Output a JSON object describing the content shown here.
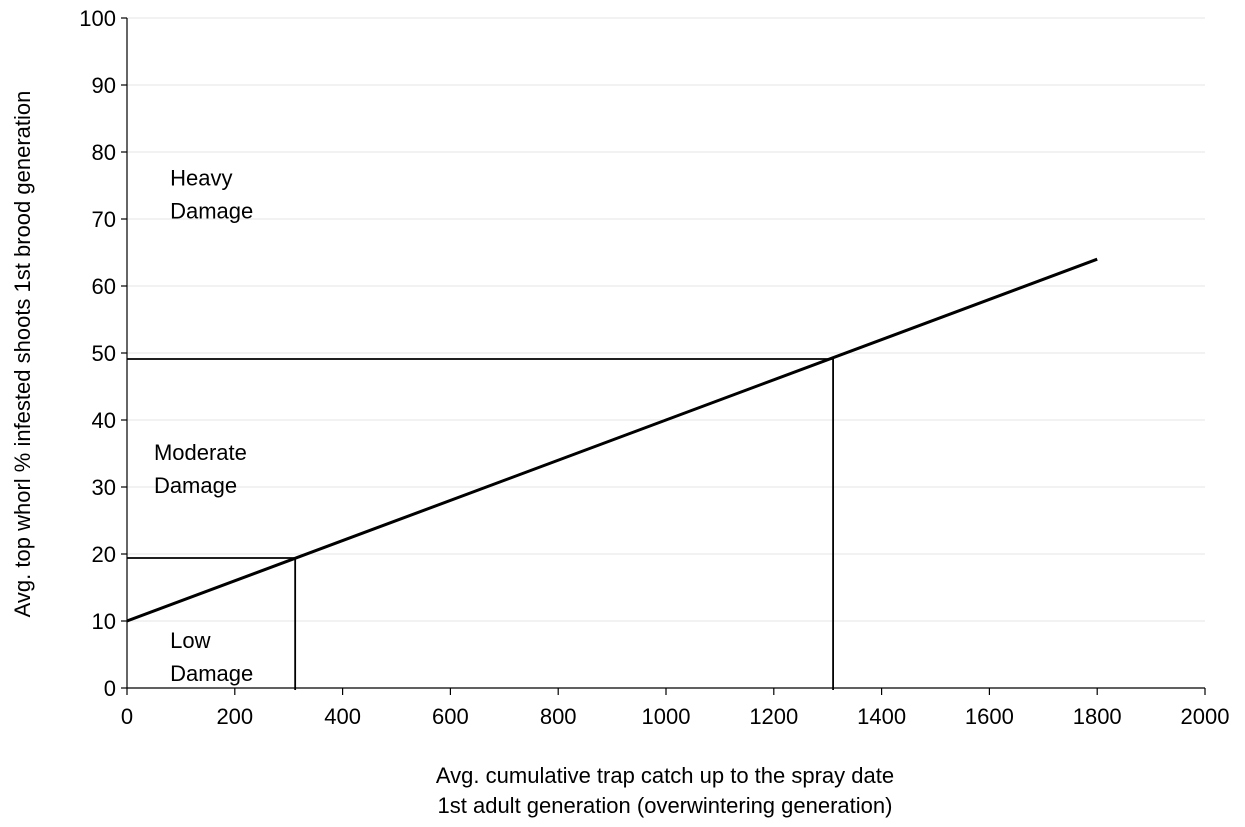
{
  "chart_data": {
    "type": "line",
    "title": "",
    "xlabel_lines": [
      "Avg. cumulative trap catch up to the spray date",
      "1st adult generation (overwintering generation)"
    ],
    "ylabel": "Avg. top whorl % infested shoots 1st brood generation",
    "xlim": [
      0,
      2000
    ],
    "ylim": [
      0,
      100
    ],
    "xticks": [
      0,
      200,
      400,
      600,
      800,
      1000,
      1200,
      1400,
      1600,
      1800,
      2000
    ],
    "yticks": [
      0,
      10,
      20,
      30,
      40,
      50,
      60,
      70,
      80,
      90,
      100
    ],
    "grid": {
      "horizontal": true,
      "vertical": false
    },
    "legend": "none",
    "series": [
      {
        "x": [
          0,
          1800
        ],
        "y": [
          10,
          64
        ]
      }
    ],
    "threshold_lines": [
      {
        "x_intercept": 312,
        "y_level": 19.4
      },
      {
        "x_intercept": 1310,
        "y_level": 49.1
      }
    ],
    "region_labels": [
      {
        "lines": [
          "Heavy",
          "Damage"
        ],
        "x": 80,
        "y": 75
      },
      {
        "lines": [
          "Moderate",
          "Damage"
        ],
        "x": 50,
        "y": 34
      },
      {
        "lines": [
          "Low",
          "Damage"
        ],
        "x": 80,
        "y": 6
      }
    ],
    "colors": {
      "line": "#000000",
      "grid": "#e6e6e6",
      "axis": "#000000"
    }
  }
}
